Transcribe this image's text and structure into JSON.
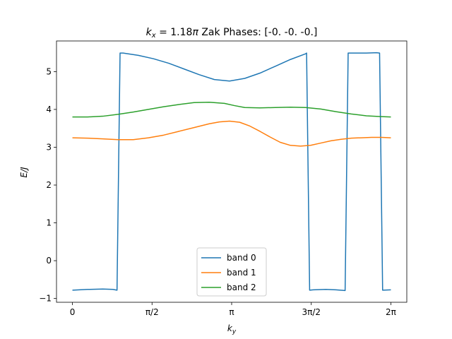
{
  "chart_data": {
    "type": "line",
    "title_prefix": "k",
    "title_sub": "x",
    "title_mid": " = 1.18",
    "title_pi": "π",
    "title_suffix": " Zak Phases: [-0. -0. -0.]",
    "xlabel": "k",
    "xlabel_sub": "y",
    "ylabel": "E/J",
    "xlim": [
      -0.314,
      6.597
    ],
    "ylim": [
      -1.1,
      5.81
    ],
    "x_ticks": [
      0,
      1.5708,
      3.1416,
      4.7124,
      6.2832
    ],
    "x_tick_labels": [
      "0",
      "π/2",
      "π",
      "3π/2",
      "2π"
    ],
    "y_ticks": [
      -1,
      0,
      1,
      2,
      3,
      4,
      5
    ],
    "y_tick_labels": [
      "−1",
      "0",
      "1",
      "2",
      "3",
      "4",
      "5"
    ],
    "grid": false,
    "legend_position": "lower center",
    "series": [
      {
        "name": "band 0",
        "color": "#1f77b4",
        "x": [
          0,
          0.3,
          0.6,
          0.8,
          0.88,
          0.94,
          1.0,
          1.3,
          1.6,
          1.9,
          2.2,
          2.5,
          2.8,
          3.1,
          3.4,
          3.7,
          4.0,
          4.3,
          4.6,
          4.62,
          4.68,
          4.75,
          5.0,
          5.2,
          5.38,
          5.44,
          5.5,
          5.8,
          6.0,
          6.06,
          6.12,
          6.283
        ],
        "y": [
          -0.78,
          -0.76,
          -0.75,
          -0.76,
          -0.78,
          5.49,
          5.49,
          5.43,
          5.34,
          5.22,
          5.07,
          4.92,
          4.79,
          4.75,
          4.82,
          4.96,
          5.14,
          5.32,
          5.47,
          5.49,
          -0.78,
          -0.77,
          -0.76,
          -0.77,
          -0.79,
          5.49,
          5.49,
          5.49,
          5.5,
          5.49,
          -0.78,
          -0.77
        ]
      },
      {
        "name": "band 1",
        "color": "#ff7f0e",
        "x": [
          0,
          0.3,
          0.6,
          0.9,
          1.2,
          1.5,
          1.8,
          2.1,
          2.4,
          2.7,
          2.9,
          3.1,
          3.3,
          3.5,
          3.7,
          3.9,
          4.1,
          4.3,
          4.5,
          4.7,
          4.9,
          5.1,
          5.3,
          5.5,
          5.7,
          5.9,
          6.1,
          6.283
        ],
        "y": [
          3.25,
          3.24,
          3.22,
          3.2,
          3.2,
          3.25,
          3.32,
          3.42,
          3.52,
          3.62,
          3.67,
          3.69,
          3.66,
          3.56,
          3.42,
          3.27,
          3.13,
          3.05,
          3.03,
          3.05,
          3.11,
          3.17,
          3.21,
          3.24,
          3.25,
          3.26,
          3.26,
          3.25
        ]
      },
      {
        "name": "band 2",
        "color": "#2ca02c",
        "x": [
          0,
          0.3,
          0.6,
          0.9,
          1.2,
          1.5,
          1.8,
          2.1,
          2.4,
          2.7,
          3.0,
          3.2,
          3.4,
          3.7,
          4.0,
          4.3,
          4.6,
          4.9,
          5.2,
          5.5,
          5.8,
          6.1,
          6.283
        ],
        "y": [
          3.8,
          3.8,
          3.82,
          3.87,
          3.93,
          4.0,
          4.07,
          4.13,
          4.18,
          4.19,
          4.16,
          4.1,
          4.05,
          4.04,
          4.05,
          4.06,
          4.05,
          4.01,
          3.94,
          3.88,
          3.83,
          3.81,
          3.8
        ]
      }
    ]
  }
}
